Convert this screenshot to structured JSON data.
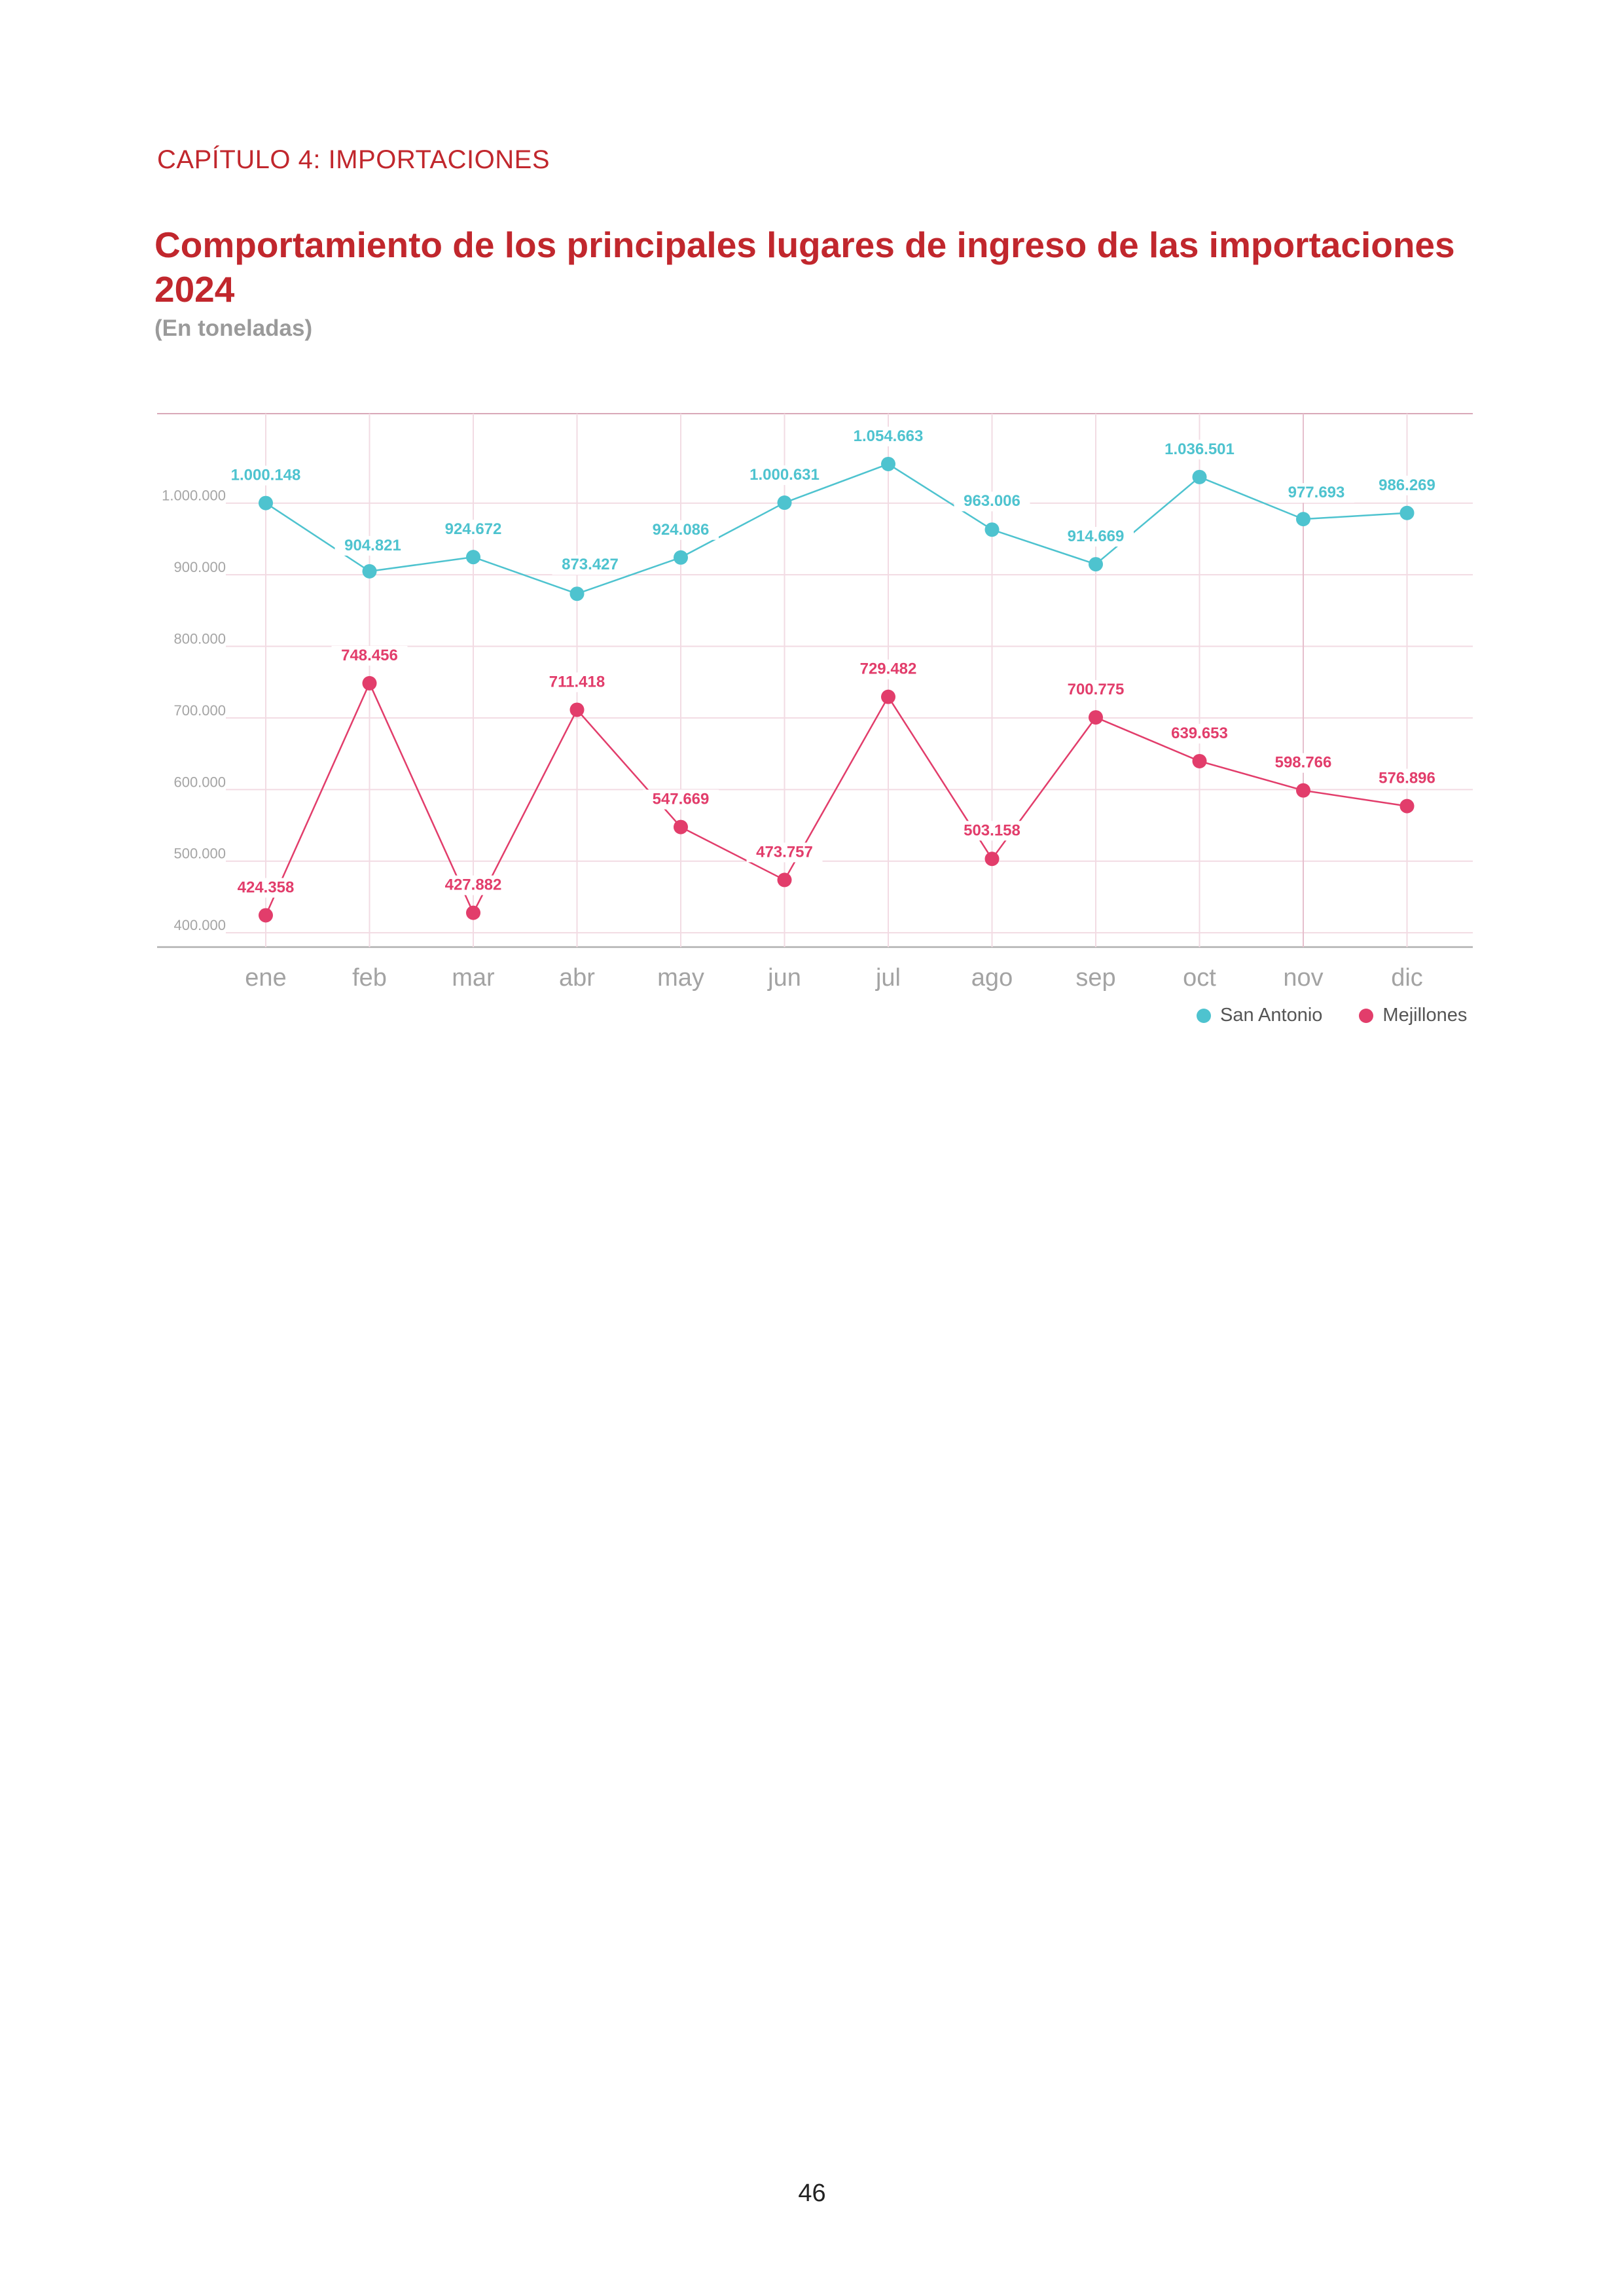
{
  "header": {
    "chapter": "CAPÍTULO 4: IMPORTACIONES",
    "title": "Comportamiento de los principales lugares de ingreso de las importaciones 2024",
    "subtitle": "(En toneladas)"
  },
  "chart_data": {
    "type": "line",
    "title": "Comportamiento de los principales lugares de ingreso de las importaciones 2024",
    "subtitle": "(En toneladas)",
    "categories": [
      "ene",
      "feb",
      "mar",
      "abr",
      "may",
      "jun",
      "jul",
      "ago",
      "sep",
      "oct",
      "nov",
      "dic"
    ],
    "series": [
      {
        "name": "San Antonio",
        "color": "#4ec3cf",
        "values": [
          1000148,
          904821,
          924672,
          873427,
          924086,
          1000631,
          1054663,
          963006,
          914669,
          1036501,
          977693,
          986269
        ],
        "labels": [
          "1.000.148",
          "904.821",
          "924.672",
          "873.427",
          "924.086",
          "1.000.631",
          "1.054.663",
          "963.006",
          "914.669",
          "1.036.501",
          "977.693",
          "986.269"
        ]
      },
      {
        "name": "Mejillones",
        "color": "#e23d6b",
        "values": [
          424358,
          748456,
          427882,
          711418,
          547669,
          473757,
          729482,
          503158,
          700775,
          639653,
          598766,
          576896
        ],
        "labels": [
          "424.358",
          "748.456",
          "427.882",
          "711.418",
          "547.669",
          "473.757",
          "729.482",
          "503.158",
          "700.775",
          "639.653",
          "598.766",
          "576.896"
        ]
      }
    ],
    "y_ticks": [
      400000,
      500000,
      600000,
      700000,
      800000,
      900000,
      1000000
    ],
    "y_tick_labels": [
      "400.000",
      "500.000",
      "600.000",
      "700.000",
      "800.000",
      "900.000",
      "1.000.000"
    ],
    "ylim": [
      380000,
      1125000
    ],
    "grid": true,
    "legend_position": "bottom-right"
  },
  "footer": {
    "page_number": "46"
  }
}
